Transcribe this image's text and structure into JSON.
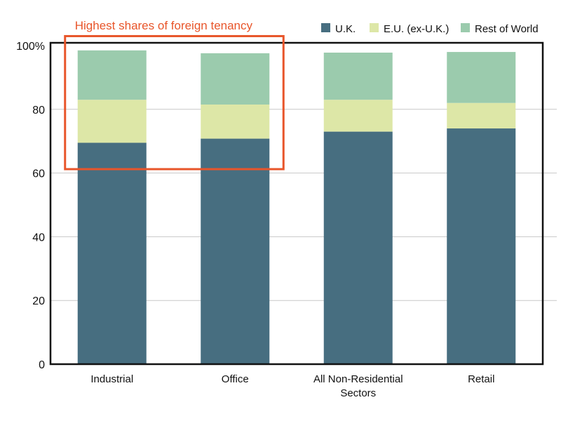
{
  "chart_data": {
    "type": "bar",
    "stacked": true,
    "categories": [
      "Industrial",
      "Office",
      "All Non-Residential\nSectors",
      "Retail"
    ],
    "series": [
      {
        "name": "U.K.",
        "color": "#476e80",
        "values": [
          69.5,
          70.8,
          73.0,
          74.0
        ]
      },
      {
        "name": "E.U. (ex-U.K.)",
        "color": "#dde7a7",
        "values": [
          13.5,
          10.7,
          10.0,
          8.0
        ]
      },
      {
        "name": "Rest of World",
        "color": "#9bcbad",
        "values": [
          15.5,
          16.1,
          14.8,
          16.0
        ]
      }
    ],
    "y_ticks": [
      "0",
      "20",
      "40",
      "60",
      "80",
      "100%"
    ],
    "y_tick_values": [
      0,
      20,
      40,
      60,
      80,
      100
    ],
    "ylim": [
      0,
      100
    ],
    "grid": true,
    "legend_position": "top-right",
    "annotation": {
      "text": "Highest shares of foreign tenancy",
      "color": "#e8552a",
      "covers_categories": [
        "Industrial",
        "Office"
      ],
      "y_range": [
        61,
        101
      ]
    }
  }
}
